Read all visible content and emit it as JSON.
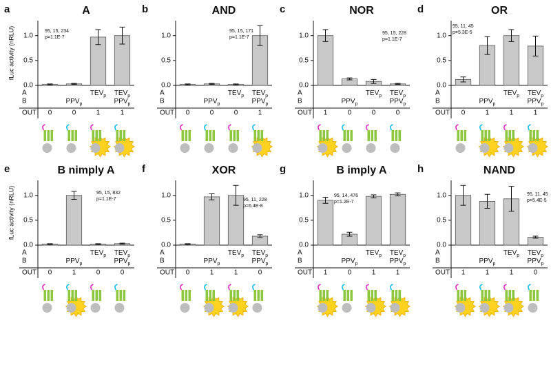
{
  "chart_data": [
    {
      "type": "bar",
      "letter": "a",
      "title": "A",
      "y_label": "fLuc activity (nRLU)",
      "row_labels": [
        "A",
        "B",
        "OUT"
      ],
      "row_a": [
        null,
        null,
        "TEVp",
        "TEVp"
      ],
      "row_b": [
        null,
        "PPVp",
        null,
        "PPVp"
      ],
      "out": [
        0,
        0,
        1,
        1
      ],
      "values": [
        0.02,
        0.03,
        0.97,
        1.0
      ],
      "errors": [
        0.01,
        0.01,
        0.15,
        0.17
      ],
      "color": "#c8c8c8",
      "annotations": [
        "95, 15, 234",
        "p=1.1E-7"
      ],
      "ylim": [
        0,
        1.3
      ],
      "yticks": [
        {
          "value": 0,
          "label": "0.0"
        },
        {
          "value": 0.5,
          "label": "0.5"
        },
        {
          "value": 1,
          "label": "1.0"
        }
      ]
    },
    {
      "type": "bar",
      "letter": "b",
      "title": "AND",
      "row_labels": [
        "A",
        "B",
        "OUT"
      ],
      "row_a": [
        null,
        null,
        "TEVp",
        "TEVp"
      ],
      "row_b": [
        null,
        "PPVp",
        null,
        "PPVp"
      ],
      "out": [
        0,
        0,
        0,
        1
      ],
      "values": [
        0.02,
        0.03,
        0.02,
        1.0
      ],
      "errors": [
        0.01,
        0.01,
        0.01,
        0.2
      ],
      "color": "#c8c8c8",
      "annotations": [
        "95, 15, 171",
        "p=1.1E-7"
      ],
      "ylim": [
        0,
        1.3
      ],
      "yticks": [
        {
          "value": 0,
          "label": "0.0"
        },
        {
          "value": 0.5,
          "label": "0.5"
        },
        {
          "value": 1,
          "label": "1.0"
        }
      ]
    },
    {
      "type": "bar",
      "letter": "c",
      "title": "NOR",
      "row_labels": [
        "A",
        "B",
        "OUT"
      ],
      "row_a": [
        null,
        null,
        "TEVp",
        "TEVp"
      ],
      "row_b": [
        null,
        "PPVp",
        null,
        "PPVp"
      ],
      "out": [
        1,
        0,
        0,
        0
      ],
      "values": [
        1.0,
        0.13,
        0.08,
        0.03
      ],
      "errors": [
        0.12,
        0.02,
        0.04,
        0.01
      ],
      "color": "#c8c8c8",
      "annotations": [
        "95, 15, 228",
        "p=1.1E-7"
      ],
      "ylim": [
        0,
        1.3
      ],
      "yticks": [
        {
          "value": 0,
          "label": "0.0"
        },
        {
          "value": 0.5,
          "label": "0.5"
        },
        {
          "value": 1,
          "label": "1.0"
        }
      ]
    },
    {
      "type": "bar",
      "letter": "d",
      "title": "OR",
      "row_labels": [
        "A",
        "B",
        "OUT"
      ],
      "row_a": [
        null,
        null,
        "TEVp",
        "TEVp"
      ],
      "row_b": [
        null,
        "PPVp",
        null,
        "PPVp"
      ],
      "out": [
        0,
        1,
        1,
        1
      ],
      "values": [
        0.12,
        0.8,
        1.0,
        0.79
      ],
      "errors": [
        0.05,
        0.18,
        0.12,
        0.2
      ],
      "color": "#c8c8c8",
      "annotations": [
        "95, 11, 45",
        "p=5.3E-5"
      ],
      "ylim": [
        0,
        1.3
      ],
      "yticks": [
        {
          "value": 0,
          "label": "0.0"
        },
        {
          "value": 0.5,
          "label": "0.5"
        },
        {
          "value": 1,
          "label": "1.0"
        }
      ]
    },
    {
      "type": "bar",
      "letter": "e",
      "title": "B nimply A",
      "y_label": "fLuc activity (nRLU)",
      "row_labels": [
        "A",
        "B",
        "OUT"
      ],
      "row_a": [
        null,
        null,
        "TEVp",
        "TEVp"
      ],
      "row_b": [
        null,
        "PPVp",
        null,
        "PPVp"
      ],
      "out": [
        0,
        1,
        0,
        0
      ],
      "values": [
        0.02,
        1.0,
        0.02,
        0.03
      ],
      "errors": [
        0.01,
        0.08,
        0.01,
        0.01
      ],
      "color": "#c8c8c8",
      "annotations": [
        "95, 15, 832",
        "p=1.1E-7"
      ],
      "ylim": [
        0,
        1.3
      ],
      "yticks": [
        {
          "value": 0,
          "label": "0.0"
        },
        {
          "value": 0.5,
          "label": "0.5"
        },
        {
          "value": 1,
          "label": "1.0"
        }
      ]
    },
    {
      "type": "bar",
      "letter": "f",
      "title": "XOR",
      "row_labels": [
        "A",
        "B",
        "OUT"
      ],
      "row_a": [
        null,
        null,
        "TEVp",
        "TEVp"
      ],
      "row_b": [
        null,
        "PPVp",
        null,
        "PPVp"
      ],
      "out": [
        0,
        1,
        1,
        0
      ],
      "values": [
        0.02,
        0.97,
        1.0,
        0.18
      ],
      "errors": [
        0.01,
        0.06,
        0.2,
        0.03
      ],
      "color": "#c8c8c8",
      "annotations": [
        "95, 11, 228",
        "p=6.4E-8"
      ],
      "ylim": [
        0,
        1.3
      ],
      "yticks": [
        {
          "value": 0,
          "label": "0.0"
        },
        {
          "value": 0.5,
          "label": "0.5"
        },
        {
          "value": 1,
          "label": "1.0"
        }
      ]
    },
    {
      "type": "bar",
      "letter": "g",
      "title": "B imply A",
      "row_labels": [
        "A",
        "B",
        "OUT"
      ],
      "row_a": [
        null,
        null,
        "TEVp",
        "TEVp"
      ],
      "row_b": [
        null,
        "PPVp",
        null,
        "PPVp"
      ],
      "out": [
        1,
        0,
        1,
        1
      ],
      "values": [
        0.9,
        0.22,
        0.98,
        1.02
      ],
      "errors": [
        0.06,
        0.04,
        0.03,
        0.03
      ],
      "color": "#c8c8c8",
      "annotations": [
        "95, 14, 476",
        "p=1.2E-7"
      ],
      "ylim": [
        0,
        1.3
      ],
      "yticks": [
        {
          "value": 0,
          "label": "0.0"
        },
        {
          "value": 0.5,
          "label": "0.5"
        },
        {
          "value": 1,
          "label": "1.0"
        }
      ]
    },
    {
      "type": "bar",
      "letter": "h",
      "title": "NAND",
      "row_labels": [
        "A",
        "B",
        "OUT"
      ],
      "row_a": [
        null,
        null,
        "TEVp",
        "TEVp"
      ],
      "row_b": [
        null,
        "PPVp",
        null,
        "PPVp"
      ],
      "out": [
        1,
        1,
        1,
        0
      ],
      "values": [
        1.0,
        0.88,
        0.93,
        0.16
      ],
      "errors": [
        0.2,
        0.14,
        0.25,
        0.02
      ],
      "color": "#c8c8c8",
      "annotations": [
        "95, 11, 45",
        "p=5.4E-5"
      ],
      "ylim": [
        0,
        1.3
      ],
      "yticks": [
        {
          "value": 0,
          "label": "0.0"
        },
        {
          "value": 0.5,
          "label": "0.5"
        },
        {
          "value": 1,
          "label": "1.0"
        }
      ]
    }
  ]
}
